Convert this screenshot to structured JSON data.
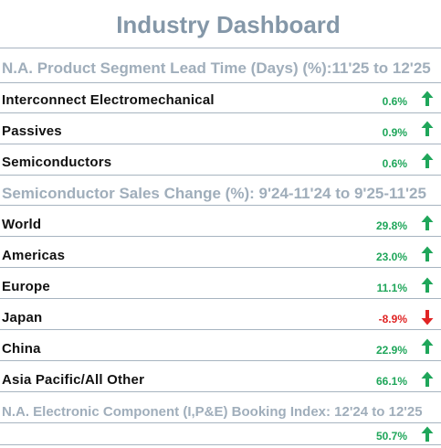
{
  "title": "Industry Dashboard",
  "colors": {
    "up": "#1fa65a",
    "down": "#e02424",
    "header": "#a0aebb",
    "title": "#8497a8",
    "rule": "#a7b4c0"
  },
  "sections": [
    {
      "header": "N.A. Product Segment Lead Time (Days) (%):11'25 to 12'25",
      "rows": [
        {
          "label": "Interconnect Electromechanical",
          "value": "0.6%",
          "trend": "up"
        },
        {
          "label": "Passives",
          "value": "0.9%",
          "trend": "up"
        },
        {
          "label": "Semiconductors",
          "value": "0.6%",
          "trend": "up"
        }
      ]
    },
    {
      "header": "Semiconductor Sales Change (%): 9'24-11'24 to 9'25-11'25",
      "rows": [
        {
          "label": "World",
          "value": "29.8%",
          "trend": "up"
        },
        {
          "label": "Americas",
          "value": "23.0%",
          "trend": "up"
        },
        {
          "label": "Europe",
          "value": "11.1%",
          "trend": "up"
        },
        {
          "label": "Japan",
          "value": "-8.9%",
          "trend": "down"
        },
        {
          "label": "China",
          "value": "22.9%",
          "trend": "up"
        },
        {
          "label": "Asia Pacific/All Other",
          "value": "66.1%",
          "trend": "up"
        }
      ]
    },
    {
      "header": "N.A. Electronic Component (I,P&E) Booking Index: 12'24 to 12'25",
      "rows": [
        {
          "label": "",
          "value": "50.7%",
          "trend": "up"
        }
      ]
    }
  ]
}
